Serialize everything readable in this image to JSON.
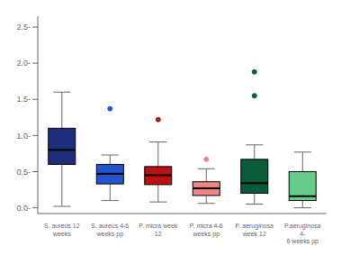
{
  "chart_data": {
    "type": "box",
    "categories": [
      "S. aureus 12\nweeks",
      "S. aureus 4-6\nweeks pp",
      "P. micra week 12",
      "P. micra 4-6\nweeks pp",
      "P. aeruginosa\nweek 12",
      "P.aeruginosa 4-\n6 weeks pp"
    ],
    "colors": [
      "#1f2d7b",
      "#2255cc",
      "#bb1111",
      "#f08585",
      "#0c5c3c",
      "#66cc88"
    ],
    "whisker_low": [
      0.02,
      0.1,
      0.08,
      0.06,
      0.05,
      0.0
    ],
    "q1": [
      0.6,
      0.33,
      0.32,
      0.17,
      0.2,
      0.1
    ],
    "median": [
      0.8,
      0.47,
      0.45,
      0.27,
      0.34,
      0.16
    ],
    "q3": [
      1.1,
      0.6,
      0.57,
      0.36,
      0.67,
      0.5
    ],
    "whisker_high": [
      1.6,
      0.73,
      0.91,
      0.54,
      0.87,
      0.77
    ],
    "outliers": [
      [],
      [
        1.37
      ],
      [
        1.22
      ],
      [
        0.67
      ],
      [
        1.55,
        1.88
      ],
      []
    ],
    "ylim": [
      -0.08,
      2.65
    ],
    "yticks": [
      {
        "value": 0.0,
        "label": "0.0-"
      },
      {
        "value": 0.5,
        "label": "0.5-"
      },
      {
        "value": 1.0,
        "label": "1.0-"
      },
      {
        "value": 1.5,
        "label": "1.5-"
      },
      {
        "value": 2.0,
        "label": "2.0-"
      },
      {
        "value": 2.5,
        "label": "2.5-"
      }
    ]
  }
}
